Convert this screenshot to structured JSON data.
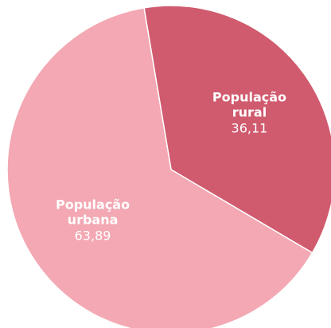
{
  "chart_data": {
    "type": "pie",
    "categories": [
      "População rural",
      "População urbana"
    ],
    "values": [
      36.11,
      63.89
    ],
    "value_labels": [
      "36,11",
      "63,89"
    ],
    "colors": [
      "#d05a6e",
      "#f3a8b3"
    ]
  }
}
